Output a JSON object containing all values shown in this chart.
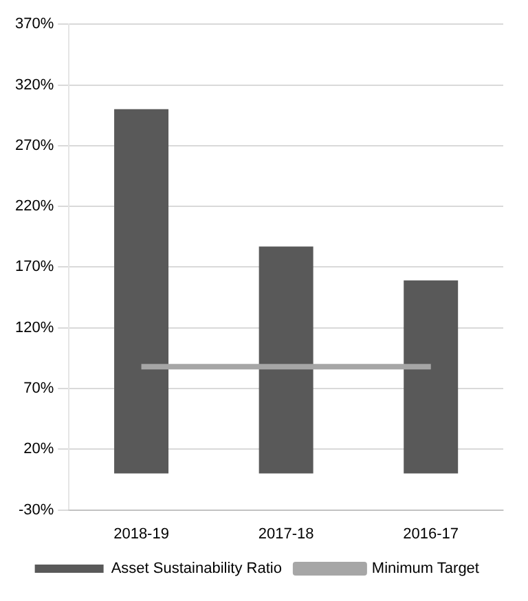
{
  "chart_data": {
    "type": "bar",
    "categories": [
      "2018-19",
      "2017-18",
      "2016-17"
    ],
    "series": [
      {
        "name": "Asset Sustainability Ratio",
        "color": "#595959",
        "values": [
          300,
          187,
          159
        ]
      },
      {
        "name": "Minimum Target",
        "type": "line",
        "color": "#a6a6a6",
        "values": [
          88,
          88,
          88
        ]
      }
    ],
    "ylim": [
      -30,
      370
    ],
    "yticks": [
      {
        "value": -30,
        "label": "-30%"
      },
      {
        "value": 20,
        "label": "20%"
      },
      {
        "value": 70,
        "label": "70%"
      },
      {
        "value": 120,
        "label": "120%"
      },
      {
        "value": 170,
        "label": "170%"
      },
      {
        "value": 220,
        "label": "220%"
      },
      {
        "value": 270,
        "label": "270%"
      },
      {
        "value": 320,
        "label": "320%"
      },
      {
        "value": 370,
        "label": "370%"
      }
    ],
    "grid": "y",
    "legend": "bottom",
    "marker": "none"
  }
}
